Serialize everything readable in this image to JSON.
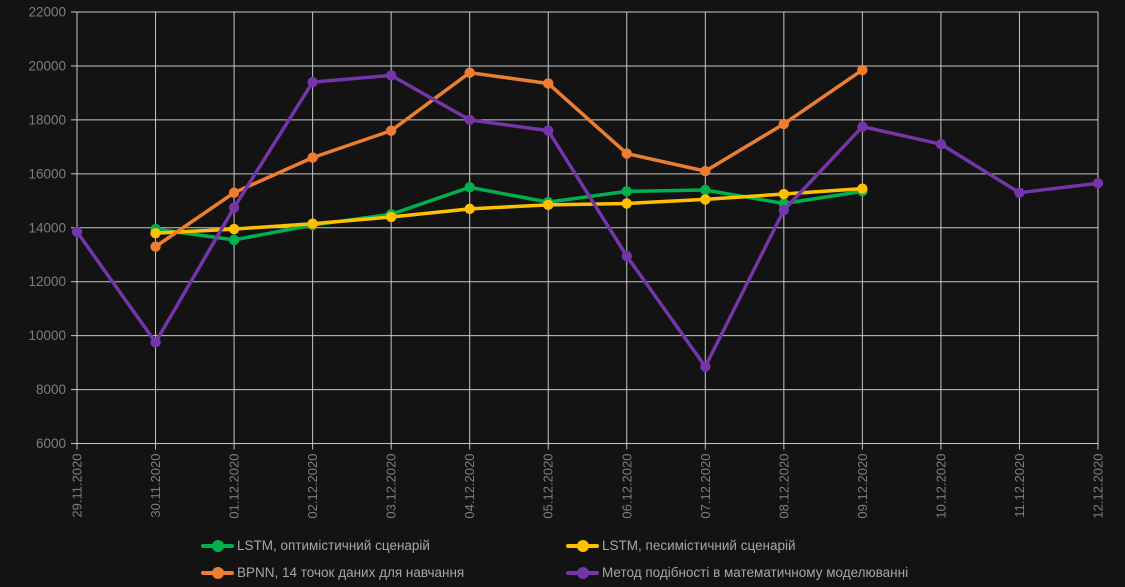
{
  "colors": {
    "background": "#131313",
    "gridline": "#C6C6C6",
    "axis_text": "#7D7D7D",
    "legend_text": "#A6A6A6"
  },
  "chart_data": {
    "type": "line",
    "title": "",
    "xlabel": "",
    "ylabel": "",
    "ylim": [
      6000,
      22000
    ],
    "ytick_step": 2000,
    "grid": true,
    "legend_position": "bottom",
    "marker": "circle",
    "categories": [
      "29.11.2020",
      "30.11.2020",
      "01.12.2020",
      "02.12.2020",
      "03.12.2020",
      "04.12.2020",
      "05.12.2020",
      "06.12.2020",
      "07.12.2020",
      "08.12.2020",
      "09.12.2020",
      "10.12.2020",
      "11.12.2020",
      "12.12.2020"
    ],
    "yticks": [
      6000,
      8000,
      10000,
      12000,
      14000,
      16000,
      18000,
      20000,
      22000
    ],
    "series": [
      {
        "name": "LSTM, оптимістичний сценарій",
        "color": "#00B050",
        "values": [
          null,
          13950,
          13550,
          14100,
          14500,
          15500,
          14950,
          15350,
          15400,
          14900,
          15350,
          null,
          null,
          null
        ]
      },
      {
        "name": "LSTM, песимістичний сценарій",
        "color": "#FFC000",
        "values": [
          null,
          13800,
          13950,
          14150,
          14400,
          14700,
          14850,
          14900,
          15050,
          15250,
          15450,
          null,
          null,
          null
        ]
      },
      {
        "name": "BPNN, 14 точок даних для навчання",
        "color": "#ED7D31",
        "values": [
          null,
          13300,
          15300,
          16600,
          17600,
          19750,
          19350,
          16750,
          16100,
          17850,
          19850,
          null,
          null,
          null
        ]
      },
      {
        "name": "Метод подібності в математичному моделюванні",
        "color": "#7534A8",
        "values": [
          13850,
          9750,
          14750,
          19400,
          19650,
          18000,
          17600,
          12950,
          8850,
          14650,
          17750,
          17100,
          15300,
          15650
        ]
      }
    ]
  }
}
